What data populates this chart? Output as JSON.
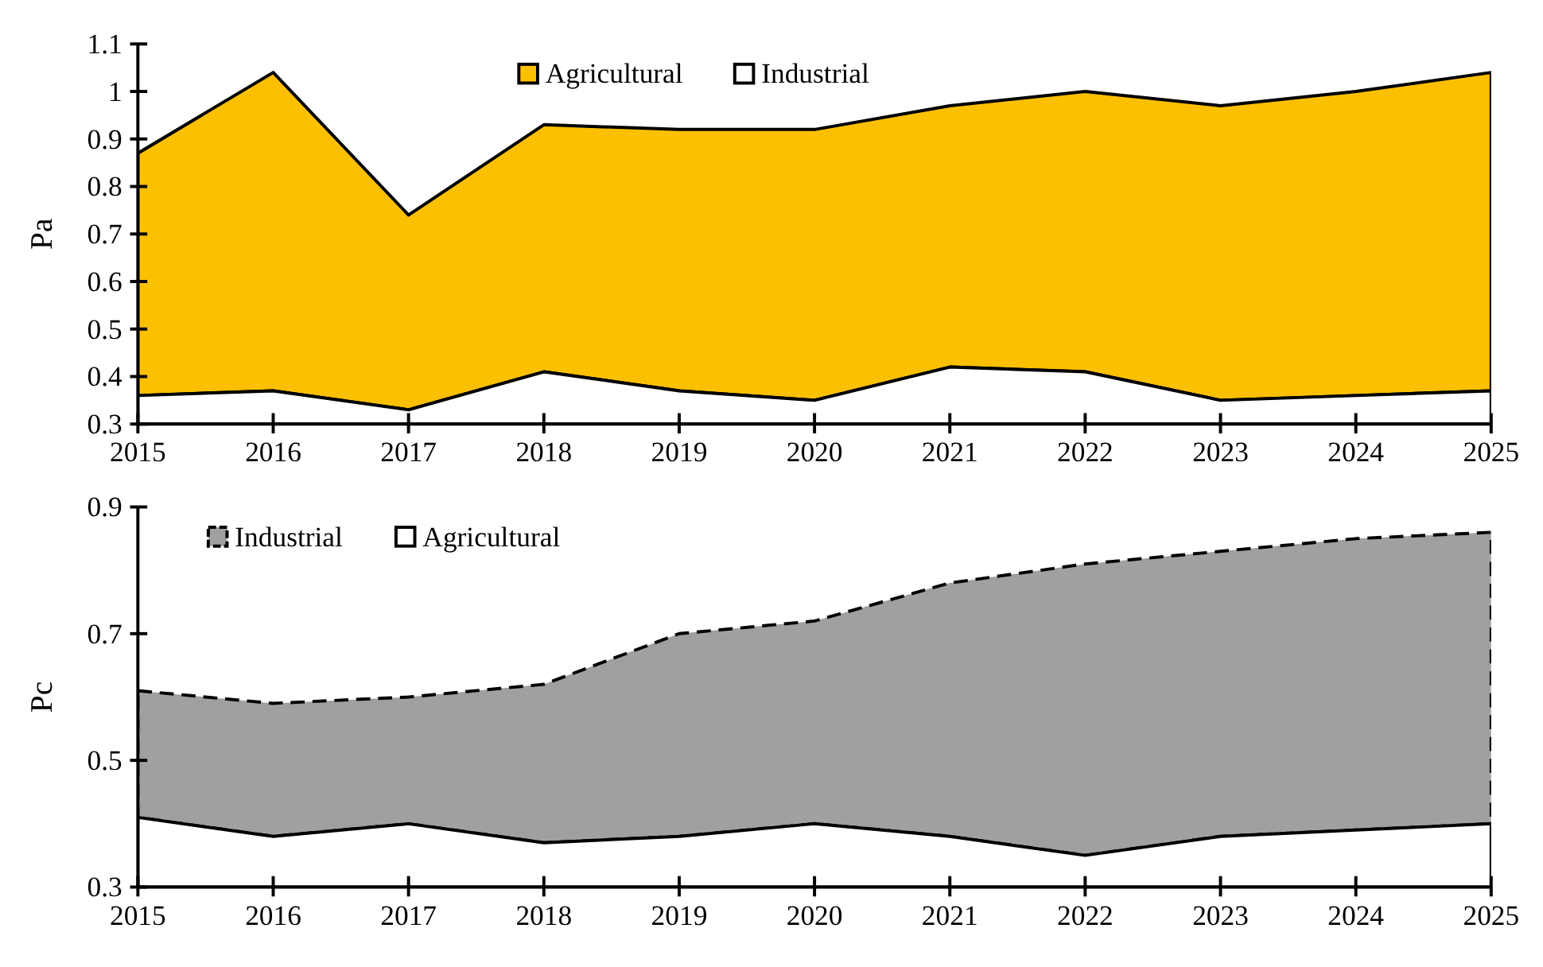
{
  "chart_data": [
    {
      "type": "area",
      "ylabel": "Pa",
      "legend": "top",
      "x": [
        2015,
        2016,
        2017,
        2018,
        2019,
        2020,
        2021,
        2022,
        2023,
        2024,
        2025
      ],
      "xlim": [
        2015,
        2025
      ],
      "xticks": [
        2015,
        2016,
        2017,
        2018,
        2019,
        2020,
        2021,
        2022,
        2023,
        2024,
        2025
      ],
      "ylim": [
        0.3,
        1.1
      ],
      "yticks": [
        0.3,
        0.4,
        0.5,
        0.6,
        0.7,
        0.8,
        0.9,
        1,
        1.1
      ],
      "series": [
        {
          "name": "Agricultural",
          "color": "#fcc000",
          "line_style": "solid",
          "values": [
            0.87,
            1.04,
            0.74,
            0.93,
            0.92,
            0.92,
            0.97,
            1.0,
            0.97,
            1.0,
            1.04
          ]
        },
        {
          "name": "Industrial",
          "color": "#ffffff",
          "line_style": "solid",
          "values": [
            0.36,
            0.37,
            0.33,
            0.41,
            0.37,
            0.35,
            0.42,
            0.41,
            0.35,
            0.36,
            0.37
          ]
        }
      ]
    },
    {
      "type": "area",
      "ylabel": "Pc",
      "legend": "top left",
      "x": [
        2015,
        2016,
        2017,
        2018,
        2019,
        2020,
        2021,
        2022,
        2023,
        2024,
        2025
      ],
      "xlim": [
        2015,
        2025
      ],
      "xticks": [
        2015,
        2016,
        2017,
        2018,
        2019,
        2020,
        2021,
        2022,
        2023,
        2024,
        2025
      ],
      "ylim": [
        0.3,
        0.9
      ],
      "yticks": [
        0.3,
        0.5,
        0.7,
        0.9
      ],
      "series": [
        {
          "name": "Industrial",
          "color": "#a0a0a0",
          "line_style": "dashed",
          "values": [
            0.61,
            0.59,
            0.6,
            0.62,
            0.7,
            0.72,
            0.78,
            0.81,
            0.83,
            0.85,
            0.86
          ]
        },
        {
          "name": "Agricultural",
          "color": "#ffffff",
          "line_style": "solid",
          "values": [
            0.41,
            0.38,
            0.4,
            0.37,
            0.38,
            0.4,
            0.38,
            0.35,
            0.38,
            0.39,
            0.4
          ]
        }
      ]
    }
  ]
}
